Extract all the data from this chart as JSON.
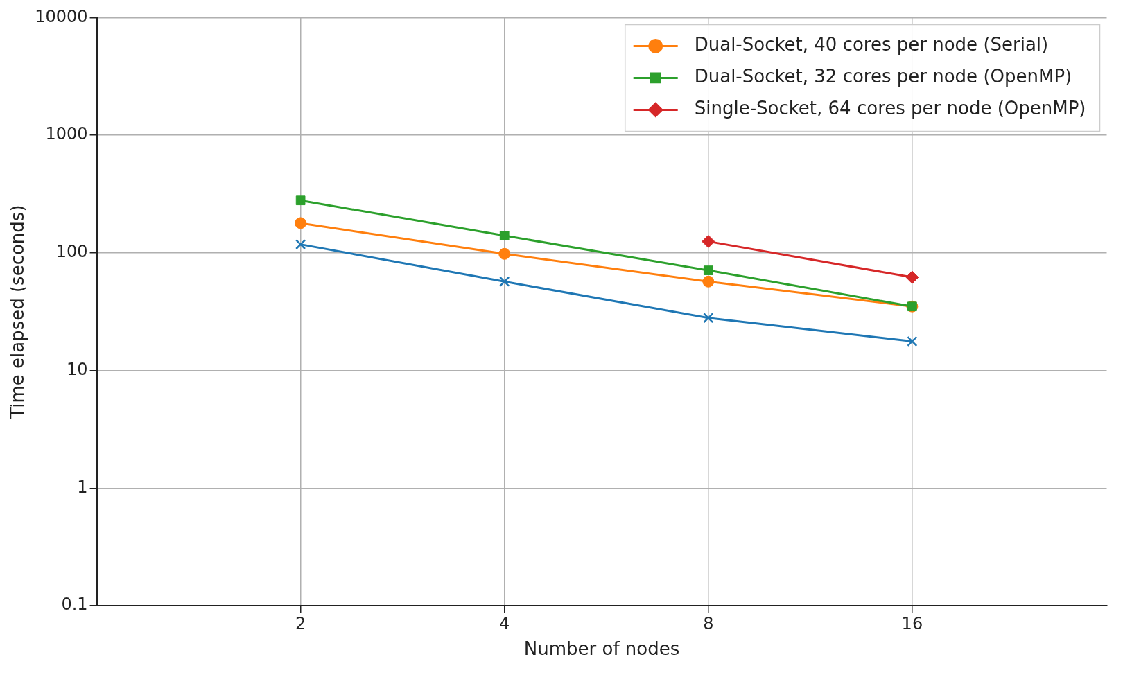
{
  "chart_data": {
    "type": "line",
    "xlabel": "Number of nodes",
    "ylabel": "Time elapsed (seconds)",
    "x": [
      2,
      4,
      8,
      16
    ],
    "xlim": [
      1,
      31
    ],
    "xticks": [
      2,
      4,
      8,
      16
    ],
    "ylim": [
      0.1,
      10000
    ],
    "yticks": [
      0.1,
      1,
      10,
      100,
      1000,
      10000
    ],
    "log": "xy",
    "grid": true,
    "legend": "top right",
    "line_style": "solid",
    "series": [
      {
        "color": "#1f77b4",
        "marker": "cross",
        "values": [
          118,
          57,
          28,
          17.7
        ]
      },
      {
        "name": "Dual-Socket, 40 cores per node (Serial)",
        "color": "#ff7f0e",
        "marker": "circle",
        "values": [
          179,
          98,
          57,
          35
        ]
      },
      {
        "name": "Dual-Socket, 32 cores per node (OpenMP)",
        "color": "#2ca02c",
        "marker": "square",
        "values": [
          279,
          140,
          71,
          35
        ]
      },
      {
        "name": "Single-Socket, 64 cores per node (OpenMP)",
        "color": "#d62728",
        "marker": "diamond",
        "values": [
          null,
          null,
          125,
          62
        ]
      }
    ]
  }
}
